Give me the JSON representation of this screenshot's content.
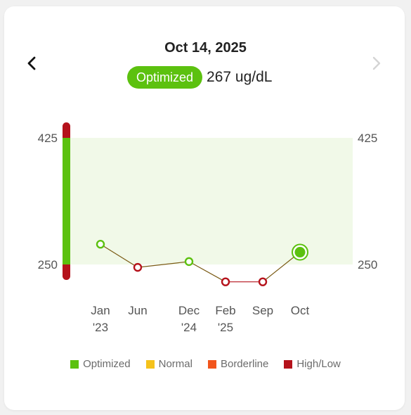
{
  "header": {
    "date": "Oct 14, 2025",
    "status_label": "Optimized",
    "value": "267 ug/dL"
  },
  "nav": {
    "prev_icon": "chevron-left-icon",
    "next_icon": "chevron-right-icon"
  },
  "colors": {
    "optimized": "#5cc10f",
    "normal": "#f5c21b",
    "borderline": "#f2551c",
    "high_low": "#b5121b",
    "band_fill": "#f1f9e8",
    "line": "#7a5a14"
  },
  "legend": [
    {
      "label": "Optimized",
      "color": "#5cc10f"
    },
    {
      "label": "Normal",
      "color": "#f5c21b"
    },
    {
      "label": "Borderline",
      "color": "#f2551c"
    },
    {
      "label": "High/Low",
      "color": "#b5121b"
    }
  ],
  "chart_data": {
    "type": "line",
    "optimal_range": [
      250,
      425
    ],
    "y_ticks_left": [
      "425",
      "250"
    ],
    "y_ticks_right": [
      "425",
      "250"
    ],
    "points": [
      {
        "label": "Jan\n'23",
        "value": 278,
        "status": "optimized"
      },
      {
        "label": "Jun",
        "value": 246,
        "status": "high_low"
      },
      {
        "label": "Dec\n'24",
        "value": 254,
        "status": "optimized"
      },
      {
        "label": "Feb\n'25",
        "value": 226,
        "status": "high_low"
      },
      {
        "label": "Sep",
        "value": 226,
        "status": "high_low"
      },
      {
        "label": "Oct",
        "value": 267,
        "status": "optimized",
        "selected": true
      }
    ]
  }
}
